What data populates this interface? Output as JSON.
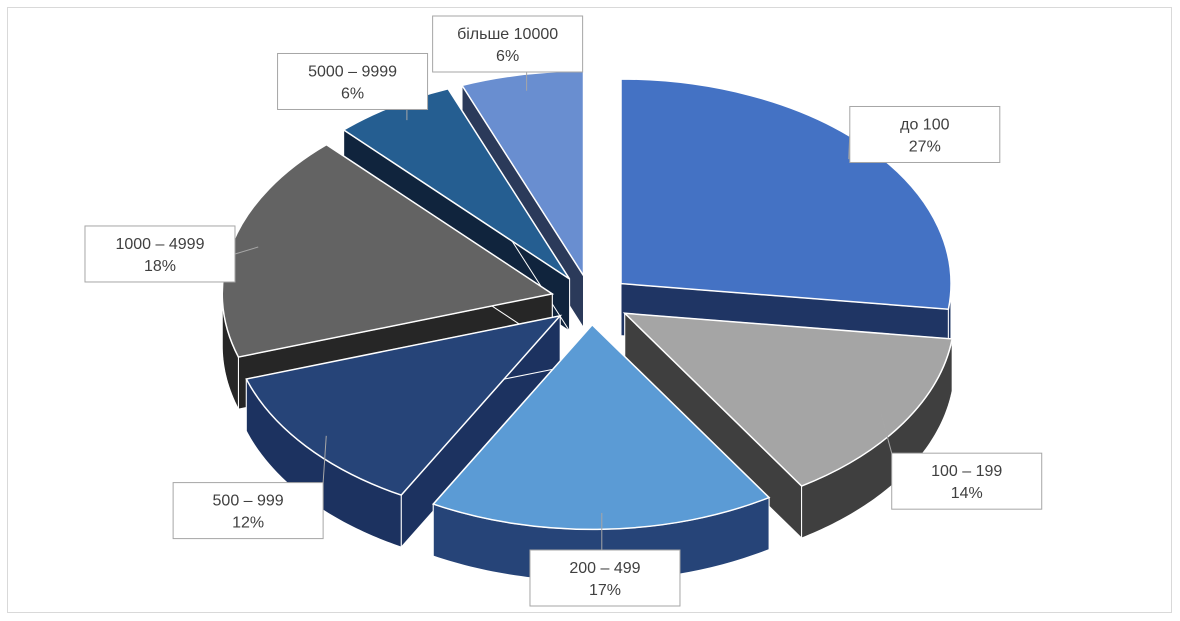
{
  "chart_data": {
    "type": "pie",
    "title": "",
    "style": "3d-exploded",
    "slices": [
      {
        "label": "до 100",
        "value": 27,
        "value_label": "27%",
        "color": "#4472c4",
        "side": "#1f3564"
      },
      {
        "label": "100 – 199",
        "value": 14,
        "value_label": "14%",
        "color": "#a5a5a5",
        "side": "#3f3f3f"
      },
      {
        "label": "200 – 499",
        "value": 17,
        "value_label": "17%",
        "color": "#5b9bd5",
        "side": "#264478"
      },
      {
        "label": "500 – 999",
        "value": 12,
        "value_label": "12%",
        "color": "#264478",
        "side": "#1c3260"
      },
      {
        "label": "1000 – 4999",
        "value": 18,
        "value_label": "18%",
        "color": "#636363",
        "side": "#262626"
      },
      {
        "label": "5000 – 9999",
        "value": 6,
        "value_label": "6%",
        "color": "#255e91",
        "side": "#10243d"
      },
      {
        "label": "більше 10000",
        "value": 6,
        "value_label": "6%",
        "color": "#698ed0",
        "side": "#2b3a5a"
      }
    ],
    "legend": "none",
    "data_labels": "callout"
  }
}
